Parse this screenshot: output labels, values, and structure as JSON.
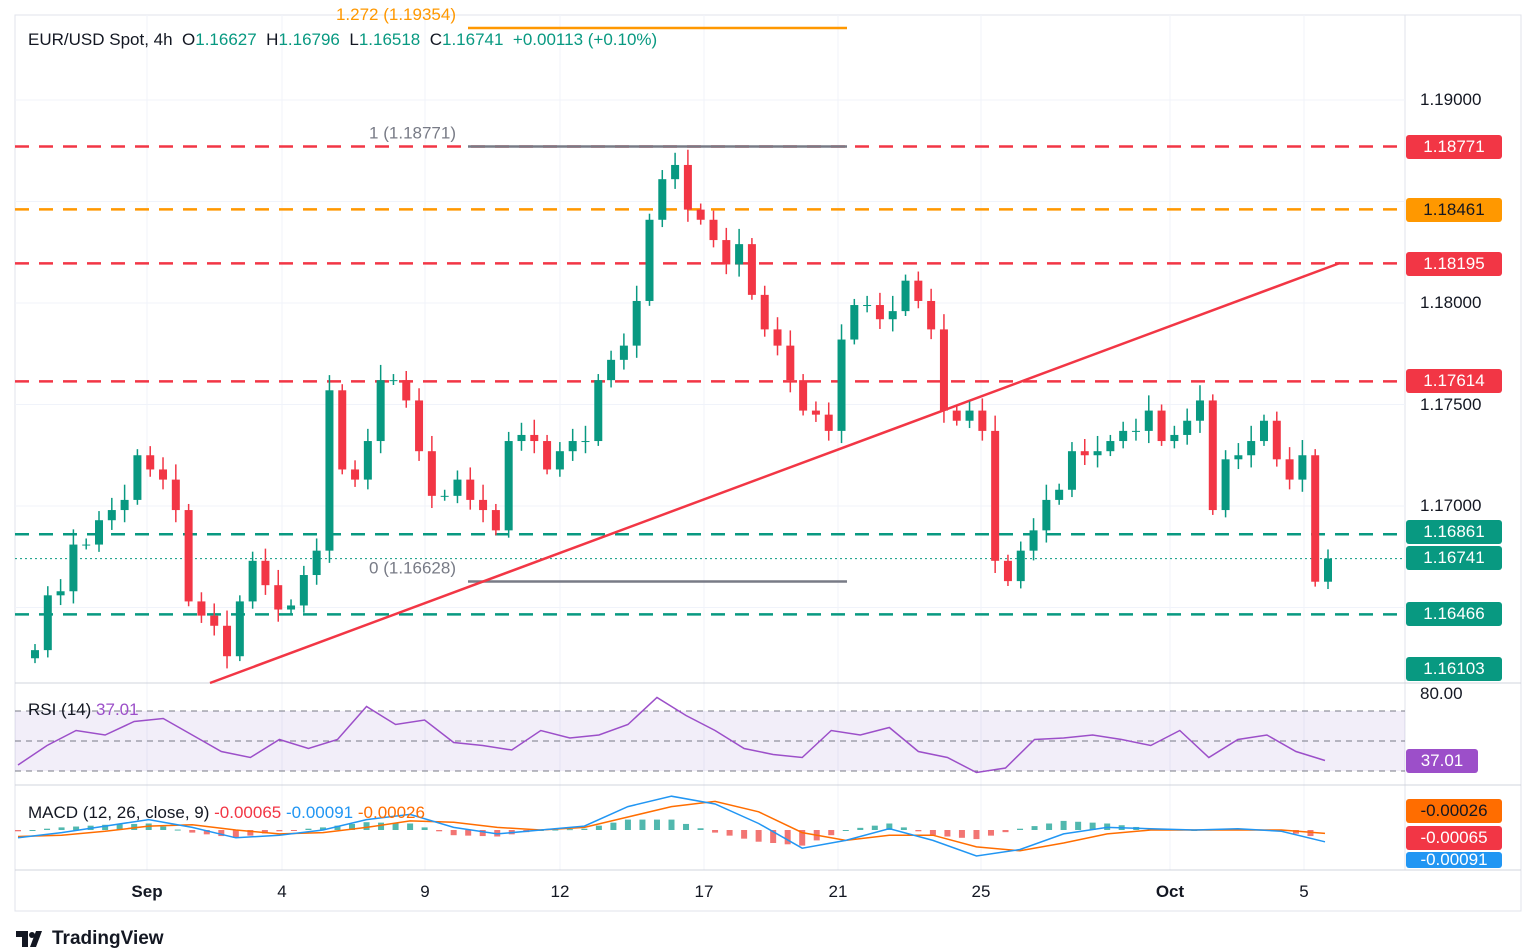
{
  "header": {
    "symbol": "EUR/USD Spot, 4h",
    "o_label": "O",
    "open": "1.16627",
    "h_label": "H",
    "high": "1.16796",
    "l_label": "L",
    "low": "1.16518",
    "c_label": "C",
    "close": "1.16741",
    "change": "+0.00113 (+0.10%)"
  },
  "colors": {
    "up": "#089981",
    "down": "#f23645",
    "orange": "#ff9800",
    "rsi": "#9c4fc9",
    "macd": "#2196f3",
    "signal": "#ff6d00"
  },
  "chart_data": [
    {
      "type": "candlestick",
      "title": "EUR/USD Spot, 4h",
      "x_ticks": [
        "Sep",
        "4",
        "9",
        "12",
        "17",
        "21",
        "25",
        "Oct",
        "5"
      ],
      "y_ticks": [
        "1.19000",
        "1.18000",
        "1.17500",
        "1.17000"
      ],
      "ylim": [
        1.1597,
        1.1939
      ],
      "closes": [
        1.1629,
        1.1656,
        1.1658,
        1.1681,
        1.1681,
        1.1693,
        1.1698,
        1.1703,
        1.1725,
        1.1718,
        1.1713,
        1.1698,
        1.1653,
        1.1646,
        1.1641,
        1.1626,
        1.1653,
        1.1673,
        1.1661,
        1.1649,
        1.1651,
        1.1666,
        1.1678,
        1.1757,
        1.1718,
        1.1713,
        1.1732,
        1.1762,
        1.1762,
        1.1752,
        1.1727,
        1.1705,
        1.1705,
        1.1713,
        1.1703,
        1.1698,
        1.1688,
        1.1732,
        1.1735,
        1.1732,
        1.1718,
        1.1727,
        1.1732,
        1.1732,
        1.1762,
        1.1772,
        1.1779,
        1.1801,
        1.1841,
        1.1861,
        1.1868,
        1.1846,
        1.1841,
        1.1831,
        1.1819,
        1.1829,
        1.1804,
        1.1787,
        1.1779,
        1.1762,
        1.1747,
        1.1745,
        1.1737,
        1.1782,
        1.1799,
        1.1799,
        1.1792,
        1.1796,
        1.1811,
        1.1801,
        1.1787,
        1.1747,
        1.1742,
        1.1747,
        1.1737,
        1.1673,
        1.1663,
        1.1678,
        1.1688,
        1.1703,
        1.1708,
        1.1727,
        1.1725,
        1.1727,
        1.1732,
        1.1737,
        1.1737,
        1.1747,
        1.1732,
        1.1735,
        1.1742,
        1.1752,
        1.1698,
        1.1723,
        1.1725,
        1.1732,
        1.1742,
        1.1723,
        1.1713,
        1.1725,
        1.16627,
        1.16741
      ],
      "levels": [
        {
          "price": 1.18771,
          "label": "1.18771",
          "color": "#f23645",
          "style": "dashed"
        },
        {
          "price": 1.18461,
          "label": "1.18461",
          "color": "#ff9800",
          "style": "dashed"
        },
        {
          "price": 1.18195,
          "label": "1.18195",
          "color": "#f23645",
          "style": "dashed"
        },
        {
          "price": 1.17614,
          "label": "1.17614",
          "color": "#f23645",
          "style": "dashed"
        },
        {
          "price": 1.16861,
          "label": "1.16861",
          "color": "#089981",
          "style": "dashed"
        },
        {
          "price": 1.16741,
          "label": "1.16741",
          "color": "#089981",
          "style": "dotted"
        },
        {
          "price": 1.16466,
          "label": "1.16466",
          "color": "#089981",
          "style": "dashed"
        }
      ],
      "extra_label": {
        "price": 1.16103,
        "label": "1.16103",
        "color": "#089981"
      },
      "trendline": {
        "from_price": 1.1613,
        "to_price": 1.182,
        "color": "#f23645"
      },
      "fib": [
        {
          "label": "1.272 (1.19354)",
          "price": 1.19354,
          "color": "#ff9800"
        },
        {
          "label": "1 (1.18771)",
          "price": 1.18771,
          "color": "#787b86"
        },
        {
          "label": "0 (1.16628)",
          "price": 1.16628,
          "color": "#787b86"
        }
      ]
    },
    {
      "type": "line",
      "title": "RSI (14)",
      "value": "37.01",
      "y_tick": "80.00",
      "bands": [
        70,
        50,
        30
      ],
      "ylim": [
        20,
        80
      ],
      "values": [
        34,
        47,
        57,
        54,
        63,
        65,
        54,
        43,
        39,
        51,
        45,
        51,
        73,
        61,
        64,
        49,
        47,
        44,
        57,
        52,
        54,
        61,
        79,
        67,
        57,
        45,
        41,
        39,
        57,
        54,
        59,
        43,
        39,
        29,
        32,
        51,
        52,
        54,
        51,
        47,
        57,
        39,
        51,
        54,
        43,
        37.01
      ]
    },
    {
      "type": "line",
      "title": "MACD (12, 26, close, 9)",
      "hist_label": "-0.00065",
      "macd_label": "-0.00091",
      "signal_label": "-0.00026",
      "macd": [
        -0.0006,
        -0.0002,
        0.0003,
        0.0008,
        0.0002,
        -0.0006,
        -0.0004,
        0.0,
        0.0008,
        0.0012,
        0.0002,
        -0.0003,
        0.0,
        0.0003,
        0.0018,
        0.0026,
        0.002,
        0.0005,
        -0.0014,
        -0.0008,
        0.0001,
        -0.0008,
        -0.002,
        -0.0015,
        -0.0003,
        0.0002,
        0.0001,
        0.0,
        0.0001,
        -0.0001,
        -0.00091
      ],
      "signal": [
        -0.0005,
        -0.0004,
        -0.0001,
        0.0003,
        0.0004,
        0.0,
        -0.0003,
        -0.0002,
        0.0002,
        0.0007,
        0.0006,
        0.0002,
        0.0,
        0.0002,
        0.001,
        0.0018,
        0.0022,
        0.0014,
        -0.0002,
        -0.0008,
        -0.0004,
        -0.0004,
        -0.0013,
        -0.0016,
        -0.001,
        -0.0003,
        0.0,
        0.0,
        0.0,
        0.0,
        -0.00026
      ]
    }
  ],
  "brand": "TradingView"
}
